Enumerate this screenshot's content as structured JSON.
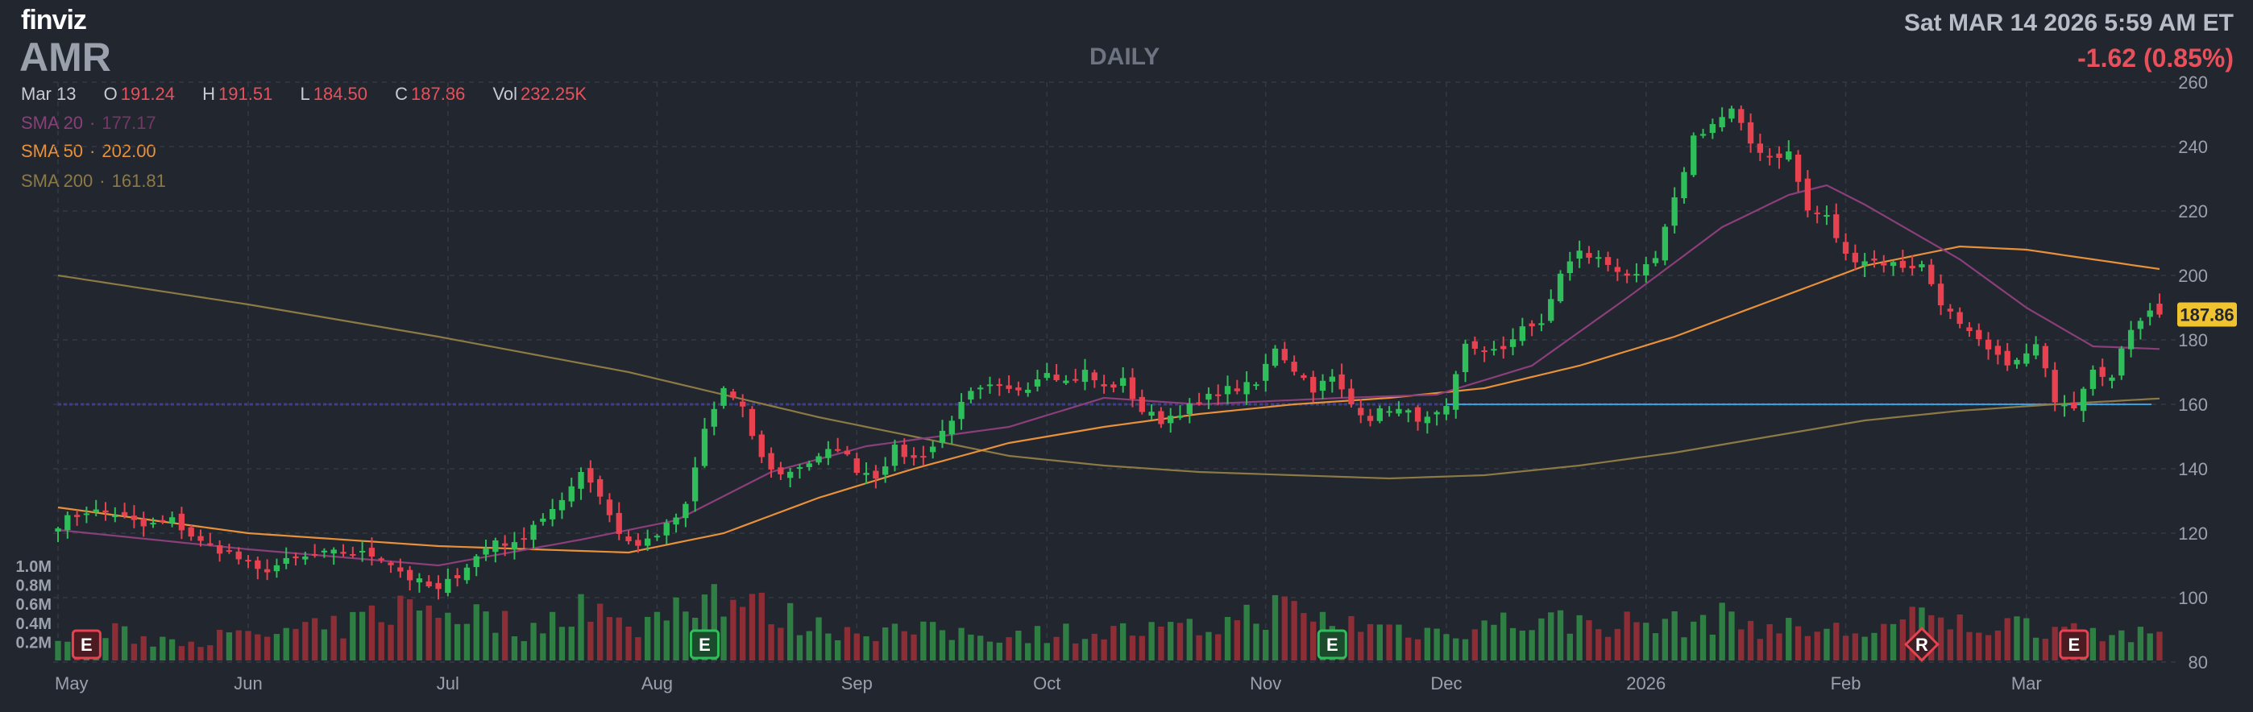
{
  "header": {
    "logo": "finviz",
    "ticker": "AMR",
    "interval": "DAILY",
    "datetime": "Sat MAR 14 2026 5:59 AM ET",
    "change": "-1.62 (0.85%)"
  },
  "ohlc": {
    "date": "Mar 13",
    "o_label": "O",
    "o": "191.24",
    "h_label": "H",
    "h": "191.51",
    "l_label": "L",
    "l": "184.50",
    "c_label": "C",
    "c": "187.86",
    "vol_label": "Vol",
    "vol": "232.25K"
  },
  "indicators": {
    "sma20": {
      "label": "SMA 20",
      "value": "177.17",
      "color": "#8a3f7a"
    },
    "sma50": {
      "label": "SMA 50",
      "value": "202.00",
      "color": "#e8913a"
    },
    "sma200": {
      "label": "SMA 200",
      "value": "161.81",
      "color": "#8c7a45"
    }
  },
  "colors": {
    "background": "#22262f",
    "up": "#2fbf5a",
    "down": "#e8414f",
    "volume_up": "#2f7f45",
    "volume_down": "#8d2d36",
    "grid": "#343945",
    "horizontal_line": "#3aa0d8",
    "price_tag": "#f0c330"
  },
  "chart_data": {
    "type": "candlestick",
    "price_axis": {
      "min": 80,
      "max": 260,
      "ticks": [
        80,
        100,
        120,
        140,
        160,
        180,
        200,
        220,
        240,
        260
      ]
    },
    "volume_axis": {
      "max_label": "1.0M",
      "ticks": [
        "1.0M",
        "0.8M",
        "0.6M",
        "0.4M",
        "0.2M"
      ],
      "values": [
        1.0,
        0.8,
        0.6,
        0.4,
        0.2
      ]
    },
    "x_labels": [
      {
        "label": "May",
        "index": 0
      },
      {
        "label": "Jun",
        "index": 20
      },
      {
        "label": "Jul",
        "index": 41
      },
      {
        "label": "Aug",
        "index": 63
      },
      {
        "label": "Sep",
        "index": 84
      },
      {
        "label": "Oct",
        "index": 104
      },
      {
        "label": "Nov",
        "index": 127
      },
      {
        "label": "Dec",
        "index": 146
      },
      {
        "label": "2026",
        "index": 167
      },
      {
        "label": "Feb",
        "index": 188
      },
      {
        "label": "Mar",
        "index": 207
      }
    ],
    "current_price": "187.86",
    "horizontal_line": 160,
    "events": [
      {
        "label": "E",
        "index": 3,
        "color": "#e8414f",
        "shape": "square"
      },
      {
        "label": "E",
        "index": 68,
        "color": "#2fbf5a",
        "shape": "square"
      },
      {
        "label": "E",
        "index": 134,
        "color": "#2fbf5a",
        "shape": "square"
      },
      {
        "label": "R",
        "index": 196,
        "color": "#e8414f",
        "shape": "diamond"
      },
      {
        "label": "E",
        "index": 212,
        "color": "#e8414f",
        "shape": "square"
      }
    ],
    "close_anchors": [
      [
        0,
        123
      ],
      [
        3,
        127
      ],
      [
        6,
        126
      ],
      [
        9,
        122
      ],
      [
        12,
        124
      ],
      [
        15,
        117
      ],
      [
        18,
        114
      ],
      [
        21,
        108
      ],
      [
        24,
        111
      ],
      [
        27,
        113
      ],
      [
        30,
        114
      ],
      [
        34,
        113
      ],
      [
        37,
        106
      ],
      [
        40,
        102
      ],
      [
        43,
        110
      ],
      [
        46,
        118
      ],
      [
        48,
        116
      ],
      [
        50,
        123
      ],
      [
        53,
        129
      ],
      [
        55,
        140
      ],
      [
        57,
        132
      ],
      [
        59,
        120
      ],
      [
        61,
        116
      ],
      [
        64,
        122
      ],
      [
        66,
        128
      ],
      [
        68,
        152
      ],
      [
        70,
        165
      ],
      [
        72,
        158
      ],
      [
        74,
        143
      ],
      [
        76,
        138
      ],
      [
        78,
        141
      ],
      [
        80,
        143
      ],
      [
        82,
        147
      ],
      [
        84,
        140
      ],
      [
        86,
        138
      ],
      [
        88,
        146
      ],
      [
        90,
        143
      ],
      [
        92,
        147
      ],
      [
        94,
        156
      ],
      [
        96,
        163
      ],
      [
        98,
        165
      ],
      [
        100,
        164
      ],
      [
        102,
        166
      ],
      [
        104,
        171
      ],
      [
        106,
        167
      ],
      [
        108,
        170
      ],
      [
        110,
        165
      ],
      [
        112,
        167
      ],
      [
        114,
        158
      ],
      [
        116,
        155
      ],
      [
        118,
        158
      ],
      [
        120,
        160
      ],
      [
        122,
        164
      ],
      [
        124,
        165
      ],
      [
        126,
        166
      ],
      [
        128,
        178
      ],
      [
        130,
        171
      ],
      [
        132,
        165
      ],
      [
        134,
        168
      ],
      [
        136,
        160
      ],
      [
        138,
        156
      ],
      [
        140,
        159
      ],
      [
        142,
        157
      ],
      [
        144,
        155
      ],
      [
        146,
        158
      ],
      [
        148,
        178
      ],
      [
        150,
        177
      ],
      [
        152,
        176
      ],
      [
        154,
        185
      ],
      [
        156,
        184
      ],
      [
        158,
        201
      ],
      [
        160,
        207
      ],
      [
        162,
        205
      ],
      [
        164,
        202
      ],
      [
        166,
        199
      ],
      [
        168,
        205
      ],
      [
        170,
        223
      ],
      [
        172,
        243
      ],
      [
        174,
        247
      ],
      [
        176,
        251
      ],
      [
        178,
        241
      ],
      [
        180,
        237
      ],
      [
        182,
        238
      ],
      [
        184,
        220
      ],
      [
        186,
        218
      ],
      [
        188,
        206
      ],
      [
        190,
        205
      ],
      [
        192,
        204
      ],
      [
        194,
        203
      ],
      [
        196,
        203
      ],
      [
        198,
        192
      ],
      [
        200,
        184
      ],
      [
        202,
        179
      ],
      [
        204,
        174
      ],
      [
        206,
        173
      ],
      [
        208,
        178
      ],
      [
        210,
        162
      ],
      [
        212,
        160
      ],
      [
        214,
        172
      ],
      [
        216,
        168
      ],
      [
        218,
        184
      ],
      [
        220,
        190
      ],
      [
        221,
        187.86
      ]
    ],
    "sma20_anchors": [
      [
        0,
        121
      ],
      [
        20,
        115
      ],
      [
        40,
        110
      ],
      [
        55,
        118
      ],
      [
        65,
        124
      ],
      [
        75,
        139
      ],
      [
        85,
        147
      ],
      [
        100,
        153
      ],
      [
        110,
        162
      ],
      [
        120,
        160
      ],
      [
        135,
        162
      ],
      [
        145,
        163
      ],
      [
        155,
        172
      ],
      [
        165,
        193
      ],
      [
        175,
        215
      ],
      [
        182,
        225
      ],
      [
        186,
        228
      ],
      [
        190,
        222
      ],
      [
        200,
        205
      ],
      [
        207,
        190
      ],
      [
        214,
        178
      ],
      [
        221,
        177.17
      ]
    ],
    "sma50_anchors": [
      [
        0,
        128
      ],
      [
        20,
        120
      ],
      [
        40,
        116
      ],
      [
        60,
        114
      ],
      [
        70,
        120
      ],
      [
        80,
        131
      ],
      [
        90,
        140
      ],
      [
        100,
        148
      ],
      [
        110,
        153
      ],
      [
        120,
        157
      ],
      [
        130,
        160
      ],
      [
        140,
        162
      ],
      [
        150,
        165
      ],
      [
        160,
        172
      ],
      [
        170,
        181
      ],
      [
        180,
        192
      ],
      [
        190,
        203
      ],
      [
        200,
        209
      ],
      [
        207,
        208
      ],
      [
        214,
        205
      ],
      [
        221,
        202
      ]
    ],
    "sma200_anchors": [
      [
        0,
        200
      ],
      [
        20,
        191
      ],
      [
        40,
        181
      ],
      [
        60,
        170
      ],
      [
        80,
        156
      ],
      [
        100,
        144
      ],
      [
        110,
        141
      ],
      [
        120,
        139
      ],
      [
        130,
        138
      ],
      [
        140,
        137
      ],
      [
        150,
        138
      ],
      [
        160,
        141
      ],
      [
        170,
        145
      ],
      [
        180,
        150
      ],
      [
        190,
        155
      ],
      [
        200,
        158
      ],
      [
        210,
        160
      ],
      [
        221,
        161.81
      ]
    ],
    "volume_anchors": [
      [
        0,
        0.18
      ],
      [
        5,
        0.3
      ],
      [
        10,
        0.22
      ],
      [
        20,
        0.25
      ],
      [
        30,
        0.35
      ],
      [
        35,
        0.55
      ],
      [
        40,
        0.55
      ],
      [
        45,
        0.45
      ],
      [
        50,
        0.3
      ],
      [
        55,
        0.65
      ],
      [
        60,
        0.3
      ],
      [
        65,
        0.6
      ],
      [
        68,
        0.75
      ],
      [
        72,
        0.6
      ],
      [
        80,
        0.35
      ],
      [
        90,
        0.3
      ],
      [
        100,
        0.28
      ],
      [
        110,
        0.3
      ],
      [
        120,
        0.32
      ],
      [
        128,
        0.55
      ],
      [
        134,
        0.4
      ],
      [
        140,
        0.35
      ],
      [
        145,
        0.3
      ],
      [
        150,
        0.38
      ],
      [
        155,
        0.42
      ],
      [
        160,
        0.4
      ],
      [
        170,
        0.38
      ],
      [
        176,
        0.45
      ],
      [
        180,
        0.34
      ],
      [
        190,
        0.3
      ],
      [
        196,
        0.44
      ],
      [
        200,
        0.38
      ],
      [
        210,
        0.36
      ],
      [
        221,
        0.23
      ]
    ]
  }
}
